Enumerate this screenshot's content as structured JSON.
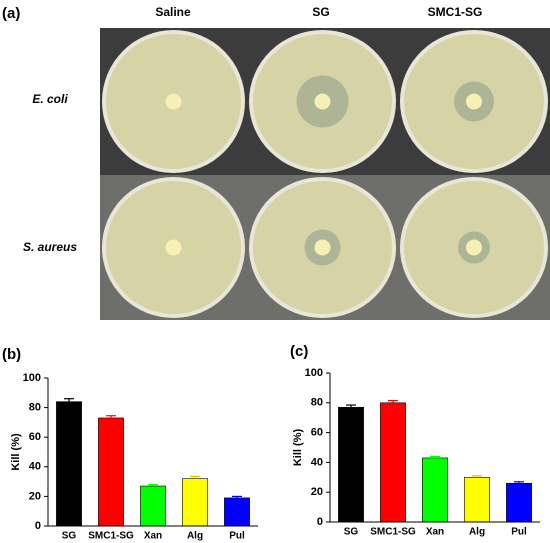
{
  "figure": {
    "panel_a": "(a)",
    "columns": [
      "Saline",
      "SG",
      "SMC1-SG"
    ],
    "rows": [
      "E. coli",
      "S. aureus"
    ]
  },
  "chart_data": [
    {
      "type": "bar",
      "panel": "(b)",
      "ylabel": "Kill (%)",
      "categories": [
        "SG",
        "SMC1-SG",
        "Xan",
        "Alg",
        "Pul"
      ],
      "values": [
        84,
        73,
        27,
        32,
        19
      ],
      "errors": [
        2,
        1.5,
        1,
        1.5,
        1
      ],
      "colors": [
        "#000000",
        "#ff0000",
        "#00ff00",
        "#ffff00",
        "#0000ff"
      ],
      "ylim": [
        0,
        100
      ],
      "yticks": [
        0,
        20,
        40,
        60,
        80,
        100
      ]
    },
    {
      "type": "bar",
      "panel": "(c)",
      "ylabel": "Kill (%)",
      "categories": [
        "SG",
        "SMC1-SG",
        "Xan",
        "Alg",
        "Pul"
      ],
      "values": [
        77,
        80,
        43,
        30,
        26
      ],
      "errors": [
        1.5,
        1.5,
        1,
        1,
        1
      ],
      "colors": [
        "#000000",
        "#ff0000",
        "#00ff00",
        "#ffff00",
        "#0000ff"
      ],
      "ylim": [
        0,
        100
      ],
      "yticks": [
        0,
        20,
        40,
        60,
        80,
        100
      ]
    }
  ]
}
